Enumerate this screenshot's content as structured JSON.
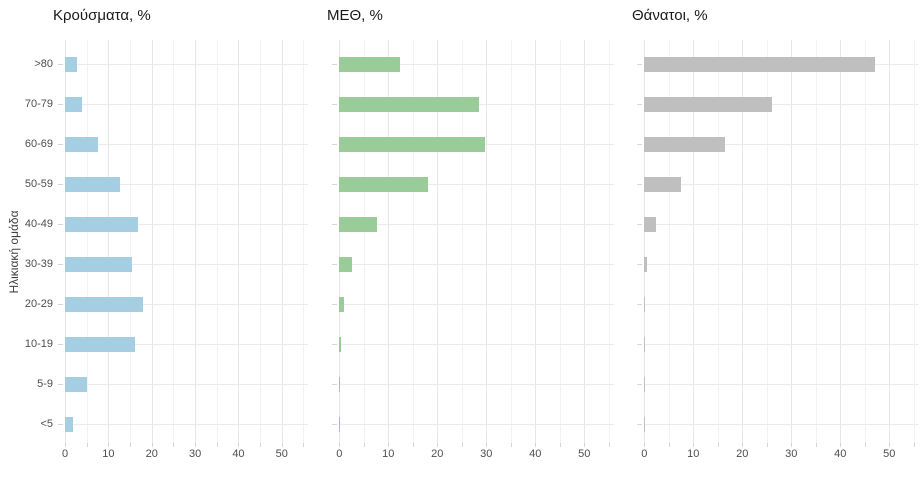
{
  "chart_data": {
    "type": "bar",
    "orientation": "horizontal",
    "categories": [
      ">80",
      "70-79",
      "60-69",
      "50-59",
      "40-49",
      "30-39",
      "20-29",
      "10-19",
      "5-9",
      "<5"
    ],
    "ylabel": "Ηλικιακή ομάδα",
    "xlim": [
      0,
      56
    ],
    "x_major_ticks": [
      0,
      10,
      20,
      30,
      40,
      50
    ],
    "x_minor_ticks": [
      5,
      15,
      25,
      35,
      45,
      55
    ],
    "grid": "major-and-minor",
    "legend": "none",
    "background_color": "#ffffff",
    "gridline_color": "#e6e6e6",
    "tick_label_color": "#4d4d4d",
    "panels": [
      {
        "title": "Κρούσματα, %",
        "color": "#A6CEE3",
        "values": [
          2.7,
          3.9,
          7.5,
          12.7,
          16.8,
          15.5,
          18.1,
          16.2,
          5.0,
          1.9
        ]
      },
      {
        "title": "ΜΕΘ, %",
        "color": "#99CC99",
        "values": [
          12.4,
          28.5,
          29.7,
          18.2,
          7.7,
          2.6,
          0.9,
          0.35,
          0.15,
          0.1
        ]
      },
      {
        "title": "Θάνατοι, %",
        "color": "#BFBFBF",
        "values": [
          47.1,
          26.1,
          16.4,
          7.5,
          2.3,
          0.6,
          0.2,
          0.2,
          0.05,
          0.15
        ]
      }
    ]
  }
}
